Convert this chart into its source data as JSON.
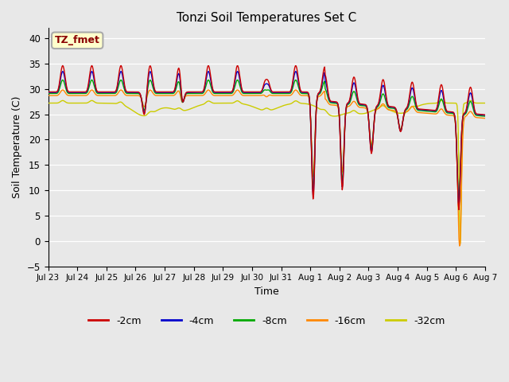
{
  "title": "Tonzi Soil Temperatures Set C",
  "xlabel": "Time",
  "ylabel": "Soil Temperature (C)",
  "ylim": [
    -5,
    42
  ],
  "yticks": [
    -5,
    0,
    5,
    10,
    15,
    20,
    25,
    30,
    35,
    40
  ],
  "annotation_text": "TZ_fmet",
  "line_colors": {
    "-2cm": "#cc0000",
    "-4cm": "#0000cc",
    "-8cm": "#00aa00",
    "-16cm": "#ff8800",
    "-32cm": "#cccc00"
  },
  "legend_labels": [
    "-2cm",
    "-4cm",
    "-8cm",
    "-16cm",
    "-32cm"
  ],
  "legend_colors": [
    "#cc0000",
    "#0000cc",
    "#00aa00",
    "#ff8800",
    "#cccc00"
  ],
  "background_color": "#e8e8e8",
  "x_labels": [
    "Jul 23",
    "Jul 24",
    "Jul 25",
    "Jul 26",
    "Jul 27",
    "Jul 28",
    "Jul 29",
    "Jul 30",
    "Jul 31",
    "Aug 1",
    "Aug 2",
    "Aug 3",
    "Aug 4",
    "Aug 5",
    "Aug 6",
    "Aug 7"
  ]
}
